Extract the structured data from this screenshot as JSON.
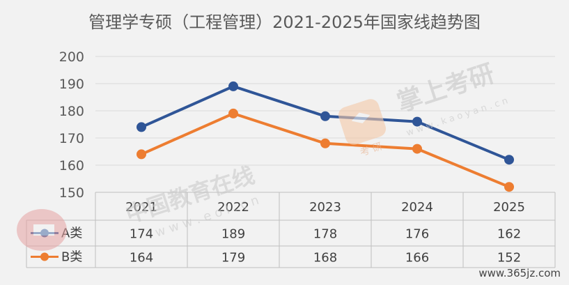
{
  "chart_data": {
    "type": "line",
    "title": "管理学专硕（工程管理）2021-2025年国家线趋势图",
    "categories": [
      "2021",
      "2022",
      "2023",
      "2024",
      "2025"
    ],
    "series": [
      {
        "name": "A类",
        "values": [
          174,
          189,
          178,
          176,
          162
        ],
        "color": "#2f5597"
      },
      {
        "name": "B类",
        "values": [
          164,
          179,
          168,
          166,
          152
        ],
        "color": "#ed7d31"
      }
    ],
    "yticks": [
      150,
      160,
      170,
      180,
      190,
      200
    ],
    "ylim": [
      150,
      200
    ],
    "grid": true,
    "legend": "data-table"
  },
  "watermarks": {
    "eol": "中国教育在线",
    "eol_domain": "w w w . e o l . c n",
    "kaoyan": "掌上考研",
    "kaoyan_domain": "w w w . k a o y a n . c n",
    "kaoyan_badge": "考 研"
  },
  "site_credit": "www.365jz.com"
}
